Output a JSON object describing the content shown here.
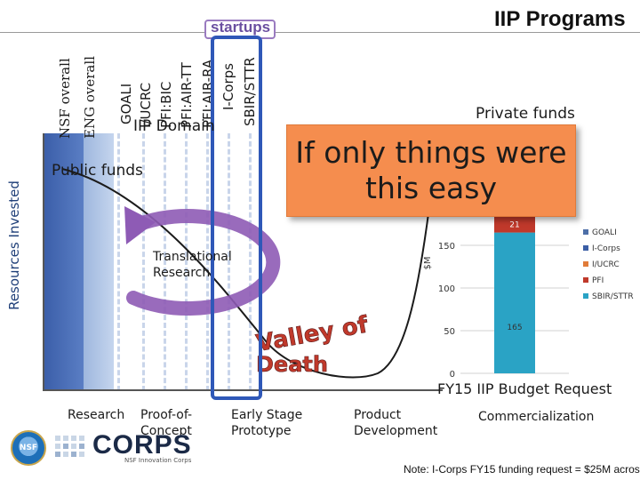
{
  "header": {
    "title": "IIP Programs"
  },
  "axes": {
    "y_label": "Resources Invested"
  },
  "programs": {
    "labels": [
      "NSF overall",
      "ENG overall",
      "GOALI",
      "I/UCRC",
      "PFI:BIC",
      "PFI:AIR-TT",
      "PFI:AIR-RA",
      "I-Corps",
      "SBIR/STTR"
    ],
    "startups_label": "startups",
    "domain_label": "IIP Domain"
  },
  "funding": {
    "public_label": "Public funds",
    "private_label": "Private funds"
  },
  "popup": {
    "text": "If only things were\nthis easy"
  },
  "research": {
    "translational_label": "Translational\nResearch",
    "valley_label": "Valley of Death"
  },
  "stages": [
    "Research",
    "Proof-of-\nConcept",
    "Early Stage\nPrototype",
    "Product\nDevelopment",
    "Commercialization"
  ],
  "budget": {
    "title": "FY15 IIP Budget Request",
    "note": "Note: I-Corps FY15 funding request = $25M across"
  },
  "chart_data": {
    "type": "bar",
    "stacked": true,
    "categories": [
      "FY15 IIP Budget Request"
    ],
    "ylabel": "$M",
    "ylim": [
      0,
      175
    ],
    "yticks": [
      0,
      50,
      100,
      150
    ],
    "series": [
      {
        "name": "SBIR/STTR",
        "values": [
          165
        ],
        "color": "#2aa3c5",
        "label": "165"
      },
      {
        "name": "PFI",
        "values": [
          21
        ],
        "color": "#c0392b",
        "label": "21"
      },
      {
        "name": "I/UCRC",
        "values": [
          null
        ],
        "color": "#e07b39"
      },
      {
        "name": "I-Corps",
        "values": [
          null
        ],
        "color": "#3c5fa6"
      },
      {
        "name": "GOALI",
        "values": [
          null
        ],
        "color": "#4d6fa8"
      }
    ],
    "legend_position": "right"
  },
  "logo": {
    "seal_text": "NSF",
    "wordmark": "CORPS",
    "subtitle": "NSF Innovation Corps"
  },
  "colors": {
    "title_text": "#111111",
    "nsf_bar": "#3a5da8",
    "eng_bar": "#9eb7de",
    "popup_bg": "#f58d4e",
    "highlight_border": "#2f58b8",
    "cycle_arrow": "#8e5bb5",
    "valley_text": "#c0392b"
  }
}
